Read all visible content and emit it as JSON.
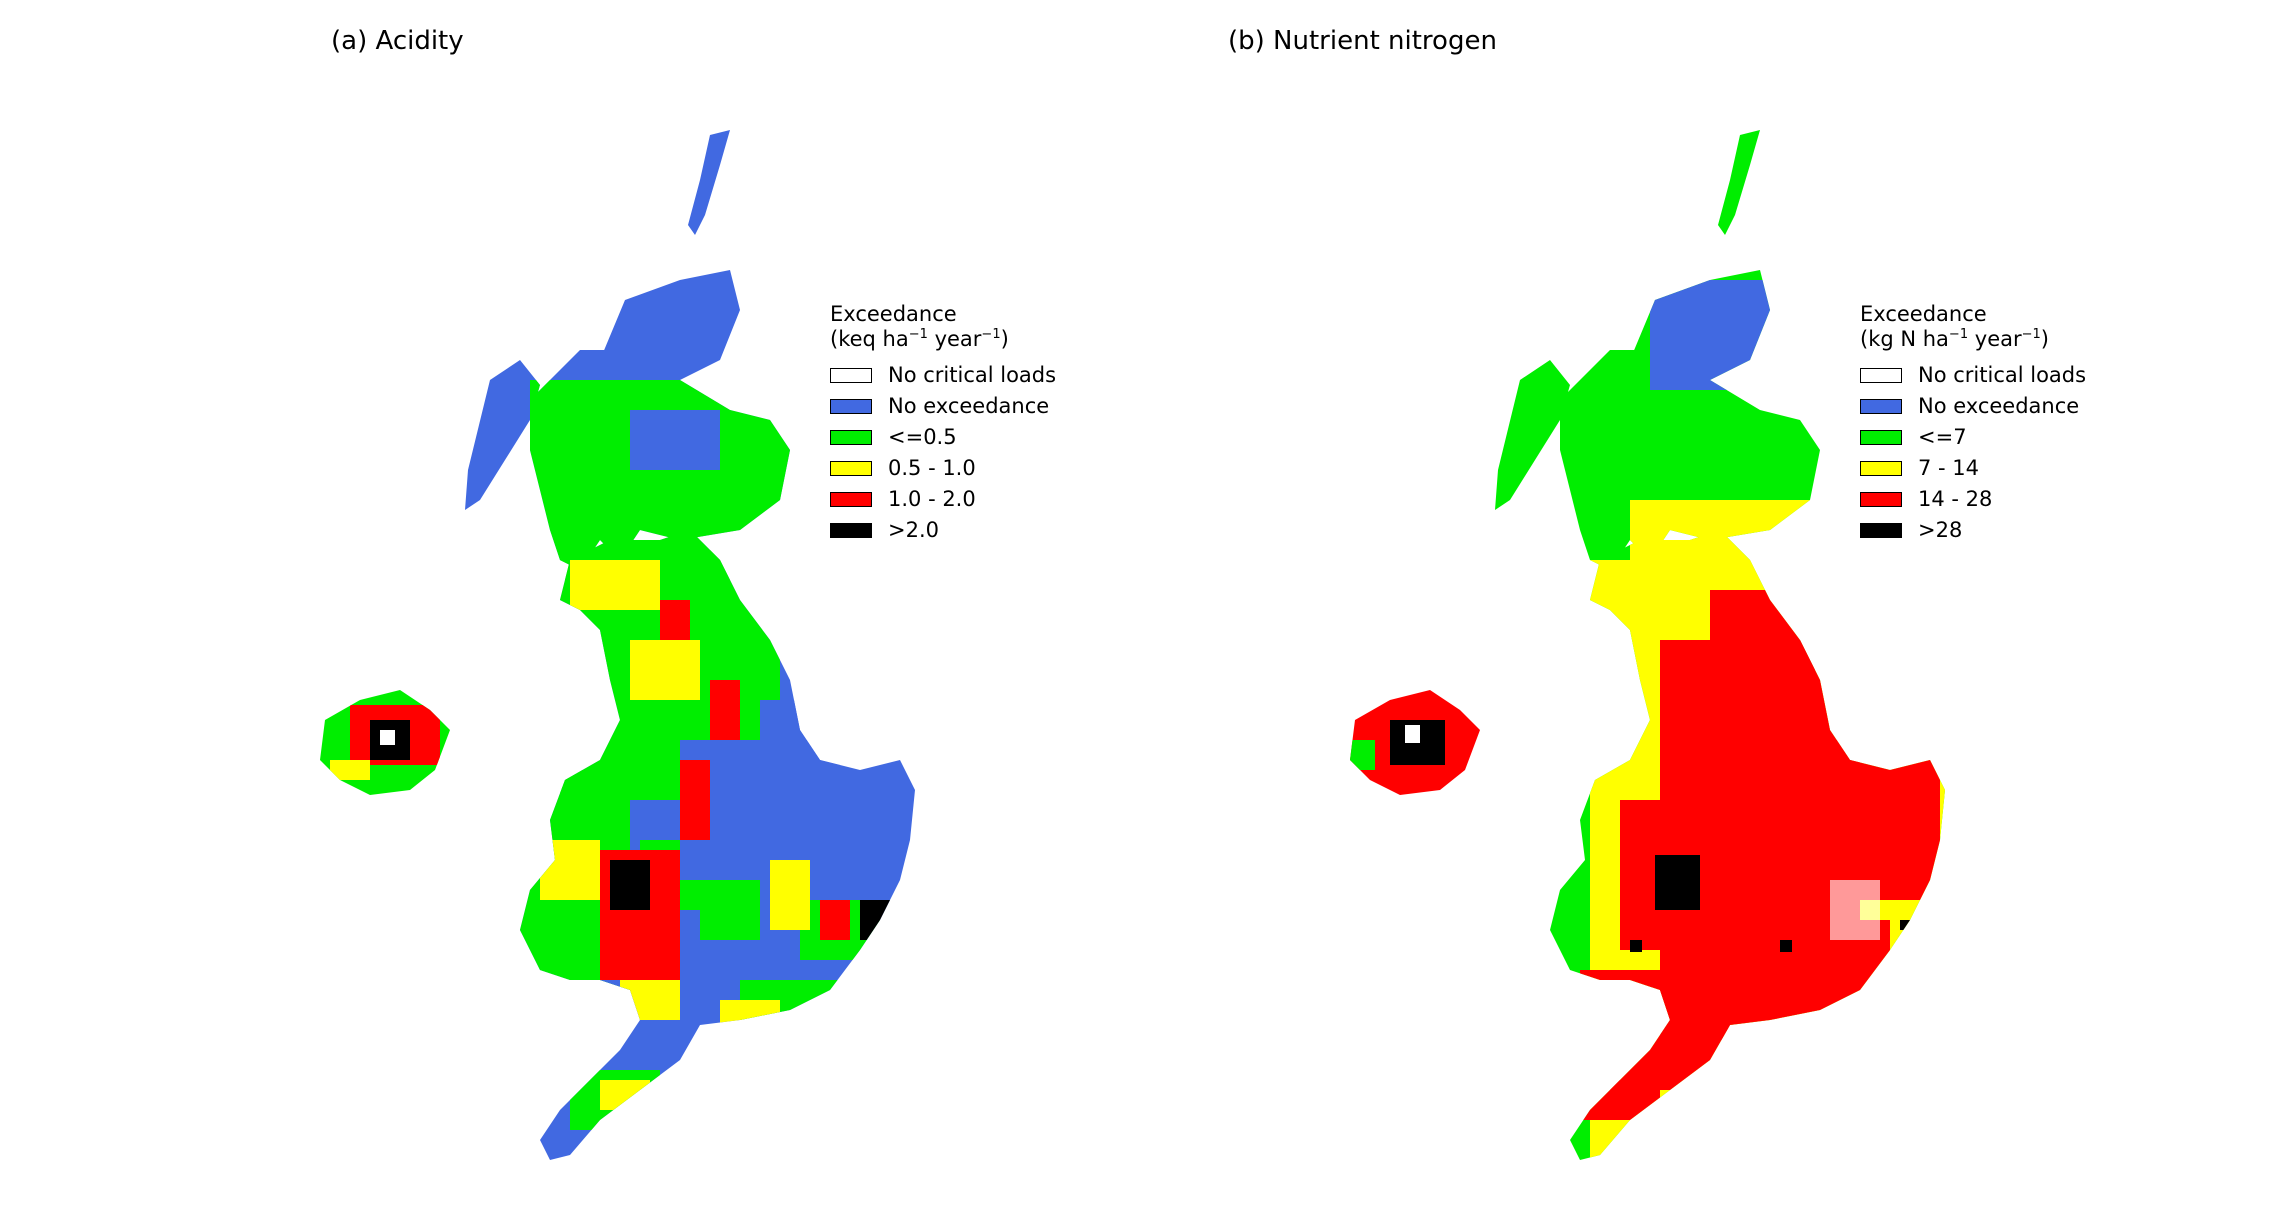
{
  "panels": [
    {
      "title": "(a) Acidity",
      "legend": {
        "title": "Exceedance",
        "units_prefix": "(keq ha",
        "units_mid": " year",
        "units_suffix": ")",
        "units_exp": "−1",
        "items": [
          {
            "label": "No critical loads",
            "color": "#ffffff"
          },
          {
            "label": "No exceedance",
            "color": "#4169e1"
          },
          {
            "label": "<=0.5",
            "color": "#00ee00"
          },
          {
            "label": "0.5 - 1.0",
            "color": "#ffff00"
          },
          {
            "label": "1.0 - 2.0",
            "color": "#ff0000"
          },
          {
            "label": ">2.0",
            "color": "#000000"
          }
        ]
      }
    },
    {
      "title": "(b) Nutrient nitrogen",
      "legend": {
        "title": "Exceedance",
        "units_prefix": "(kg N ha",
        "units_mid": " year",
        "units_suffix": ")",
        "units_exp": "−1",
        "items": [
          {
            "label": "No critical loads",
            "color": "#ffffff"
          },
          {
            "label": "No exceedance",
            "color": "#4169e1"
          },
          {
            "label": "<=7",
            "color": "#00ee00"
          },
          {
            "label": "7 - 14",
            "color": "#ffff00"
          },
          {
            "label": "14 - 28",
            "color": "#ff0000"
          },
          {
            "label": ">28",
            "color": "#000000"
          }
        ]
      }
    }
  ]
}
